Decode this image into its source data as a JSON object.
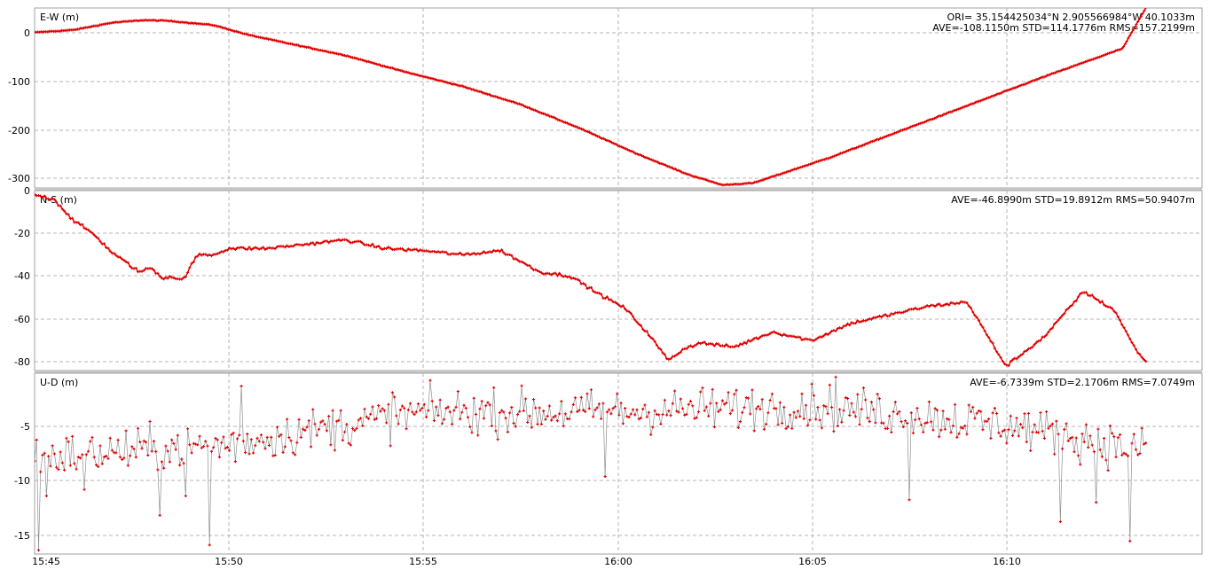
{
  "x_ticks": [
    "15:45",
    "15:50",
    "15:55",
    "16:00",
    "16:05",
    "16:10"
  ],
  "colors": {
    "series": "#e00000",
    "line": "#909090",
    "grid": "#b4b4b4",
    "separator": "#c8c8c8"
  },
  "panels": [
    {
      "label": "E-W (m)",
      "info_lines": [
        "ORI= 35.154425034°N   2.905566984°W 40.1033m",
        "AVE=-108.1150m STD=114.1776m RMS=157.2199m"
      ],
      "y_ticks": [
        "0",
        "-100",
        "-200",
        "-300"
      ]
    },
    {
      "label": "N-S (m)",
      "info_lines": [
        "AVE=-46.8990m STD=19.8912m RMS=50.9407m"
      ],
      "y_ticks": [
        "0",
        "-20",
        "-40",
        "-60",
        "-80"
      ]
    },
    {
      "label": "U-D (m)",
      "info_lines": [
        "AVE=-6.7339m STD=2.1706m RMS=7.0749m"
      ],
      "y_ticks": [
        "-5",
        "-10",
        "-15"
      ]
    }
  ],
  "chart_data": {
    "type": "scatter",
    "x_unit": "minutes after 15:45",
    "x_range": [
      0,
      28.6
    ],
    "grid": true,
    "panels": [
      {
        "name": "E-W (m)",
        "ylim": [
          -318,
          50
        ],
        "style": "line",
        "x": [
          0,
          1,
          2,
          2.8,
          3.4,
          4.6,
          5.5,
          6.5,
          8,
          9.5,
          11,
          12.5,
          14,
          15.5,
          16.8,
          17.7,
          18.5,
          20.5,
          22,
          24,
          26,
          28,
          28.6
        ],
        "y": [
          0,
          5,
          20,
          25,
          24,
          15,
          -5,
          -22,
          -47,
          -80,
          -110,
          -147,
          -195,
          -248,
          -290,
          -312,
          -308,
          -255,
          -210,
          -150,
          -90,
          -33,
          50
        ]
      },
      {
        "name": "N-S (m)",
        "ylim": [
          -84,
          0
        ],
        "style": "markers",
        "x": [
          0,
          0.5,
          1,
          1.5,
          2,
          2.7,
          3,
          3.3,
          3.5,
          3.8,
          4.2,
          4.6,
          5,
          6,
          7,
          8,
          9,
          10,
          11,
          12,
          13,
          13.8,
          14.5,
          15.2,
          15.8,
          16.3,
          16.8,
          17.2,
          17.5,
          18,
          19,
          20,
          21,
          22,
          23,
          24,
          25,
          26,
          27,
          27.8,
          28.3,
          28.6
        ],
        "y": [
          -2,
          -4,
          -14,
          -20,
          -29,
          -38,
          -36,
          -41,
          -40,
          -42,
          -30,
          -30,
          -27,
          -27,
          -25,
          -23,
          -27,
          -28,
          -30,
          -28,
          -38,
          -40,
          -48,
          -55,
          -67,
          -79,
          -73,
          -71,
          -72,
          -73,
          -66,
          -70,
          -62,
          -58,
          -54,
          -52,
          -82,
          -68,
          -47,
          -56,
          -73,
          -80
        ]
      },
      {
        "name": "U-D (m)",
        "ylim": [
          -16,
          -2
        ],
        "style": "noisy-markers",
        "trend_x": [
          0,
          5,
          10,
          15,
          20,
          25,
          28.6
        ],
        "trend_y": [
          -8.5,
          -7.5,
          -5,
          -5,
          -4.5,
          -6,
          -8
        ],
        "outliers_x": [
          0.1,
          0.3,
          1.3,
          3.2,
          3.9,
          4.5,
          5.3,
          9.2,
          14.7,
          20.6,
          22.5,
          26.4,
          27.3,
          28.2
        ],
        "outliers_y": [
          -15.7,
          -11.5,
          -11,
          -13,
          -11.5,
          -15.3,
          -3,
          -3.5,
          -10,
          -2.3,
          -11.8,
          -13.5,
          -12,
          -15
        ]
      }
    ]
  }
}
